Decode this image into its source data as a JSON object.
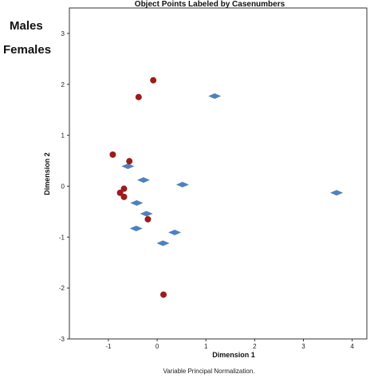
{
  "side_labels": {
    "males": "Males",
    "females": "Females"
  },
  "footnote": "Variable Principal Normalization.",
  "chart_data": {
    "type": "scatter",
    "title": "Object Points Labeled by Casenumbers",
    "xlabel": "Dimension 1",
    "ylabel": "Dimension 2",
    "xlim": [
      -1.8,
      4.3
    ],
    "ylim": [
      -3,
      3.5
    ],
    "xticks": [
      -1,
      0,
      1,
      2,
      3,
      4
    ],
    "yticks": [
      -3,
      -2,
      -1,
      0,
      1,
      2,
      3
    ],
    "grid": false,
    "legend": "none",
    "series": [
      {
        "marker": "diamond",
        "color": "#4f81bd",
        "points": [
          [
            1.18,
            1.77
          ],
          [
            -0.6,
            0.39
          ],
          [
            -0.28,
            0.12
          ],
          [
            0.52,
            0.03
          ],
          [
            3.68,
            -0.13
          ],
          [
            -0.42,
            -0.33
          ],
          [
            -0.22,
            -0.54
          ],
          [
            0.36,
            -0.91
          ],
          [
            -0.43,
            -0.83
          ],
          [
            0.12,
            -1.12
          ]
        ]
      },
      {
        "marker": "circle",
        "color": "#9c1c1c",
        "points": [
          [
            -0.08,
            2.08
          ],
          [
            -0.38,
            1.75
          ],
          [
            -0.91,
            0.62
          ],
          [
            -0.57,
            0.49
          ],
          [
            -0.68,
            -0.05
          ],
          [
            -0.76,
            -0.13
          ],
          [
            -0.68,
            -0.21
          ],
          [
            -0.19,
            -0.65
          ],
          [
            0.13,
            -2.13
          ]
        ]
      }
    ]
  }
}
